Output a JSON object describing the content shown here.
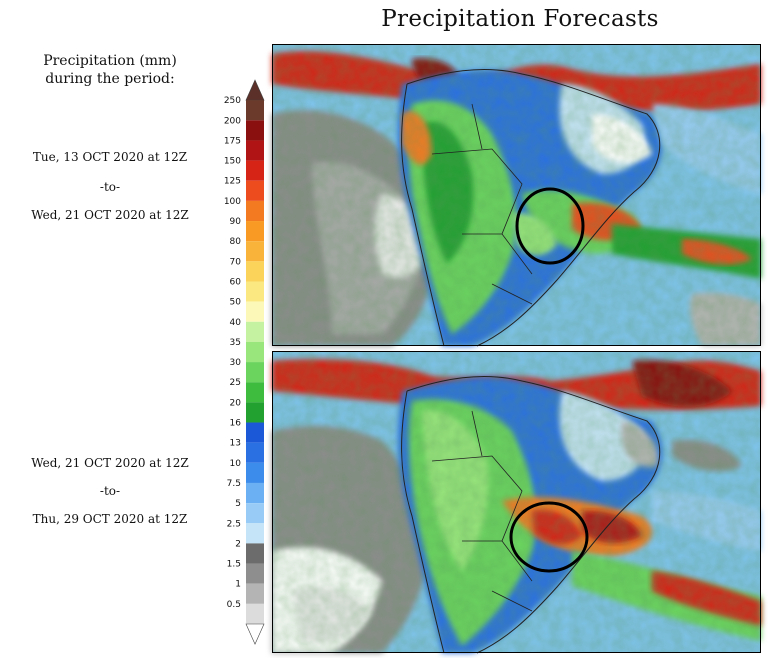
{
  "title": "Precipitation Forecasts",
  "legend": {
    "heading": [
      "Precipitation (mm)",
      "during the period:"
    ],
    "levels": [
      "250",
      "200",
      "175",
      "150",
      "125",
      "100",
      "90",
      "80",
      "70",
      "60",
      "50",
      "40",
      "35",
      "30",
      "25",
      "20",
      "16",
      "13",
      "10",
      "7.5",
      "5",
      "2.5",
      "2",
      "1.5",
      "1",
      "0.5"
    ],
    "colors": [
      "#6b3a2a",
      "#8a1010",
      "#b01414",
      "#d62416",
      "#ec4c1e",
      "#f47a22",
      "#f99a24",
      "#f9b23a",
      "#fbd25a",
      "#fbe880",
      "#fbf8b8",
      "#c4f2a0",
      "#98e67c",
      "#6ad45e",
      "#3ebc3e",
      "#22a030",
      "#1a58d8",
      "#2a70e2",
      "#3c8cec",
      "#6ab0f2",
      "#98ccf6",
      "#c6e4f8",
      "#6c6c6c",
      "#8e8e8e",
      "#b4b4b4",
      "#dcdcdc"
    ],
    "top_arrow_color": "#5a3028",
    "bottom_arrow_color": "#ffffff"
  },
  "periods": [
    {
      "start": "Tue, 13 OCT 2020 at 12Z",
      "sep": "-to-",
      "end": "Wed, 21 OCT 2020 at 12Z"
    },
    {
      "start": "Wed, 21 OCT 2020 at 12Z",
      "sep": "-to-",
      "end": "Thu, 29 OCT 2020 at 12Z"
    }
  ],
  "colors": {
    "ocean": "#7fc4ee",
    "land_grey": "#8c8c8c",
    "border": "#222222",
    "highlight_circle": "#000000"
  }
}
